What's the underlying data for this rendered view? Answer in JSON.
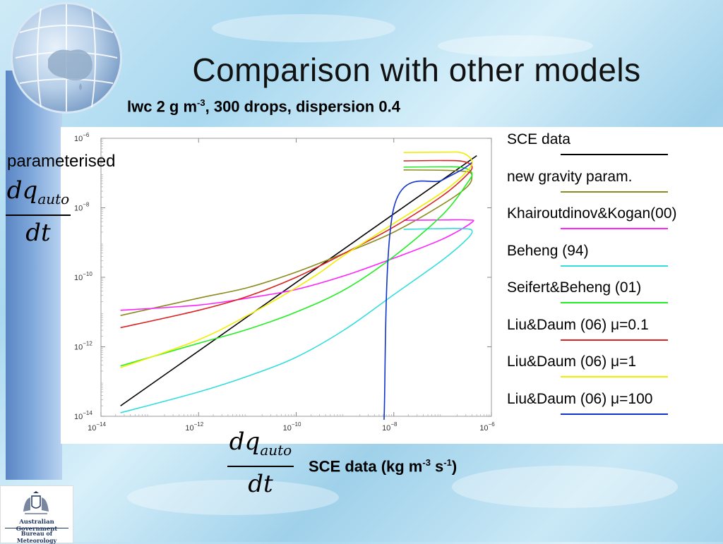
{
  "title": "Comparison with other models",
  "subtitle": {
    "main": "lwc 2 g m",
    "exp": "-3",
    "rest": ", 300 drops, dispersion 0.4"
  },
  "y_annotation": "parameterised",
  "fraction": {
    "num": "dq",
    "sub": "auto",
    "den": "dt"
  },
  "x_annotation": {
    "p1": "SCE data (kg m",
    "e1": "-3",
    "p2": " s",
    "e2": "-1",
    "p3": ")"
  },
  "logo": {
    "line1": "Australian Government",
    "line2": "Bureau of Meteorology"
  },
  "chart_data": {
    "type": "line",
    "x_scale": "log",
    "y_scale": "log",
    "xlim": [
      1e-14,
      1e-06
    ],
    "ylim": [
      1e-14,
      1e-06
    ],
    "x_ticks": [
      {
        "value": 1e-14,
        "base": "10",
        "exp": "−14"
      },
      {
        "value": 1e-12,
        "base": "10",
        "exp": "−12"
      },
      {
        "value": 1e-10,
        "base": "10",
        "exp": "−10"
      },
      {
        "value": 1e-08,
        "base": "10",
        "exp": "−8"
      },
      {
        "value": 1e-06,
        "base": "10",
        "exp": "−6"
      }
    ],
    "y_ticks": [
      {
        "value": 1e-14,
        "base": "10",
        "exp": "−14"
      },
      {
        "value": 1e-12,
        "base": "10",
        "exp": "−12"
      },
      {
        "value": 1e-10,
        "base": "10",
        "exp": "−10"
      },
      {
        "value": 1e-08,
        "base": "10",
        "exp": "−8"
      },
      {
        "value": 1e-06,
        "base": "10",
        "exp": "−6"
      }
    ],
    "series": [
      {
        "name": "SCE data",
        "color": "#000000",
        "points": [
          [
            -13.6,
            -13.7
          ],
          [
            -6.3,
            -6.5
          ]
        ]
      },
      {
        "name": "new gravity param.",
        "color": "#8b8b1e",
        "points": [
          [
            -13.6,
            -11.1
          ],
          [
            -12.0,
            -10.6
          ],
          [
            -11.0,
            -10.3
          ],
          [
            -10.0,
            -9.85
          ],
          [
            -9.0,
            -9.3
          ],
          [
            -8.0,
            -8.7
          ],
          [
            -7.0,
            -7.9
          ],
          [
            -6.5,
            -7.4
          ],
          [
            -6.4,
            -7.1
          ],
          [
            -6.5,
            -6.96
          ],
          [
            -7.0,
            -6.92
          ],
          [
            -7.8,
            -6.91
          ]
        ]
      },
      {
        "name": "Khairoutdinov&Kogan(00)",
        "color": "#ff22ff",
        "points": [
          [
            -13.6,
            -10.95
          ],
          [
            -12.0,
            -10.8
          ],
          [
            -11.0,
            -10.6
          ],
          [
            -10.0,
            -10.35
          ],
          [
            -9.0,
            -9.95
          ],
          [
            -8.0,
            -9.45
          ],
          [
            -7.0,
            -8.9
          ],
          [
            -6.4,
            -8.42
          ],
          [
            -6.5,
            -8.35
          ],
          [
            -7.0,
            -8.35
          ],
          [
            -7.8,
            -8.36
          ]
        ]
      },
      {
        "name": "Beheng (94)",
        "color": "#33dddd",
        "points": [
          [
            -13.6,
            -13.9
          ],
          [
            -12.0,
            -13.3
          ],
          [
            -11.0,
            -12.85
          ],
          [
            -10.0,
            -12.3
          ],
          [
            -9.0,
            -11.5
          ],
          [
            -8.0,
            -10.5
          ],
          [
            -7.0,
            -9.5
          ],
          [
            -6.5,
            -8.9
          ],
          [
            -6.4,
            -8.65
          ],
          [
            -6.6,
            -8.6
          ],
          [
            -7.0,
            -8.6
          ],
          [
            -7.8,
            -8.62
          ]
        ]
      },
      {
        "name": "Seifert&Beheng (01)",
        "color": "#22ee22",
        "points": [
          [
            -13.6,
            -12.55
          ],
          [
            -12.0,
            -11.9
          ],
          [
            -11.0,
            -11.5
          ],
          [
            -10.0,
            -11.0
          ],
          [
            -9.0,
            -10.35
          ],
          [
            -8.0,
            -9.4
          ],
          [
            -7.0,
            -8.2
          ],
          [
            -6.5,
            -7.3
          ],
          [
            -6.4,
            -7.0
          ],
          [
            -6.6,
            -6.84
          ],
          [
            -7.0,
            -6.82
          ],
          [
            -7.8,
            -6.83
          ]
        ]
      },
      {
        "name": "Liu&Daum (06) μ=0.1",
        "color": "#dd2222",
        "points": [
          [
            -13.6,
            -11.45
          ],
          [
            -12.0,
            -10.95
          ],
          [
            -11.0,
            -10.55
          ],
          [
            -10.0,
            -10.0
          ],
          [
            -9.0,
            -9.3
          ],
          [
            -8.0,
            -8.55
          ],
          [
            -7.0,
            -7.65
          ],
          [
            -6.5,
            -7.05
          ],
          [
            -6.4,
            -6.8
          ],
          [
            -6.6,
            -6.66
          ],
          [
            -7.0,
            -6.64
          ],
          [
            -7.8,
            -6.65
          ]
        ]
      },
      {
        "name": "Liu&Daum (06) μ=1",
        "color": "#f2ee00",
        "points": [
          [
            -13.6,
            -12.6
          ],
          [
            -12.0,
            -11.8
          ],
          [
            -11.0,
            -11.1
          ],
          [
            -10.0,
            -10.3
          ],
          [
            -9.5,
            -9.85
          ],
          [
            -9.0,
            -9.35
          ],
          [
            -8.0,
            -8.45
          ],
          [
            -7.0,
            -7.55
          ],
          [
            -6.5,
            -6.95
          ],
          [
            -6.4,
            -6.65
          ],
          [
            -6.6,
            -6.42
          ],
          [
            -7.0,
            -6.4
          ],
          [
            -7.8,
            -6.41
          ]
        ]
      },
      {
        "name": "Liu&Daum (06) μ=100",
        "color": "#1133cc",
        "points": [
          [
            -8.2,
            -14.1
          ],
          [
            -8.0,
            -8.0
          ],
          [
            -7.0,
            -7.2
          ],
          [
            -6.6,
            -6.9
          ],
          [
            -6.4,
            -6.7
          ]
        ]
      }
    ]
  }
}
